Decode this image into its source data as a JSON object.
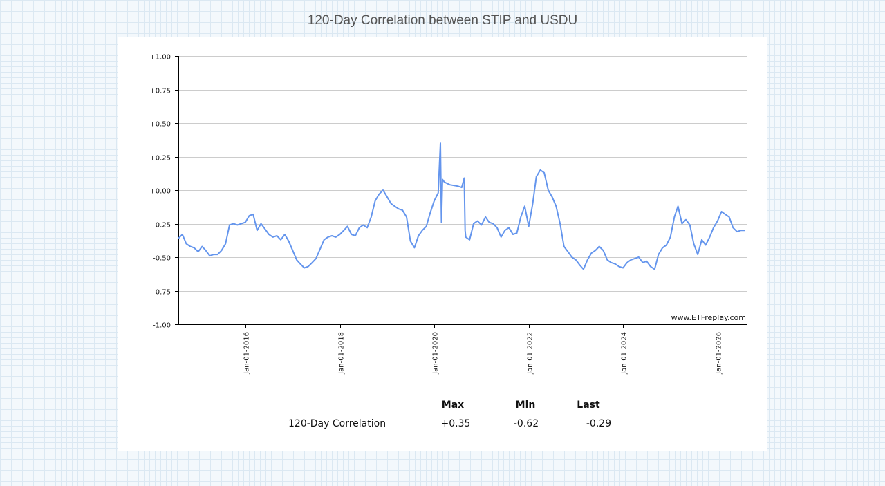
{
  "title": "120-Day Correlation between STIP and USDU",
  "watermark": "www.ETFreplay.com",
  "colors": {
    "line": "#6495ed",
    "grid": "#cccccc",
    "axis": "#000000"
  },
  "chart_data": {
    "type": "line",
    "title": "120-Day Correlation between STIP and USDU",
    "xlabel": "",
    "ylabel": "",
    "ylim": [
      -1.0,
      1.0
    ],
    "xlim": [
      "2014-08-01",
      "2026-08-20"
    ],
    "grid": true,
    "yticks": [
      {
        "value": 1.0,
        "label": "+1.00"
      },
      {
        "value": 0.75,
        "label": "+0.75"
      },
      {
        "value": 0.5,
        "label": "+0.50"
      },
      {
        "value": 0.25,
        "label": "+0.25"
      },
      {
        "value": 0.0,
        "label": "+0.00"
      },
      {
        "value": -0.25,
        "label": "-0.25"
      },
      {
        "value": -0.5,
        "label": "-0.50"
      },
      {
        "value": -0.75,
        "label": "-0.75"
      },
      {
        "value": -1.0,
        "label": "-1.00"
      }
    ],
    "xticks": [
      {
        "date": "2016-01-01",
        "label": "Jan-01-2016"
      },
      {
        "date": "2018-01-01",
        "label": "Jan-01-2018"
      },
      {
        "date": "2020-01-01",
        "label": "Jan-01-2020"
      },
      {
        "date": "2022-01-01",
        "label": "Jan-01-2022"
      },
      {
        "date": "2024-01-01",
        "label": "Jan-01-2024"
      },
      {
        "date": "2026-01-01",
        "label": "Jan-01-2026"
      }
    ],
    "series": [
      {
        "points": [
          [
            "2014-08-01",
            -0.36
          ],
          [
            "2014-09-01",
            -0.33
          ],
          [
            "2014-10-01",
            -0.4
          ],
          [
            "2014-11-01",
            -0.42
          ],
          [
            "2014-12-01",
            -0.43
          ],
          [
            "2015-01-01",
            -0.46
          ],
          [
            "2015-02-01",
            -0.42
          ],
          [
            "2015-03-01",
            -0.45
          ],
          [
            "2015-04-01",
            -0.49
          ],
          [
            "2015-05-01",
            -0.48
          ],
          [
            "2015-06-01",
            -0.48
          ],
          [
            "2015-07-01",
            -0.45
          ],
          [
            "2015-08-01",
            -0.4
          ],
          [
            "2015-09-01",
            -0.26
          ],
          [
            "2015-10-01",
            -0.25
          ],
          [
            "2015-11-01",
            -0.26
          ],
          [
            "2015-12-01",
            -0.25
          ],
          [
            "2016-01-01",
            -0.24
          ],
          [
            "2016-02-01",
            -0.19
          ],
          [
            "2016-03-01",
            -0.18
          ],
          [
            "2016-04-01",
            -0.3
          ],
          [
            "2016-05-01",
            -0.25
          ],
          [
            "2016-06-01",
            -0.29
          ],
          [
            "2016-07-01",
            -0.33
          ],
          [
            "2016-08-01",
            -0.35
          ],
          [
            "2016-09-01",
            -0.34
          ],
          [
            "2016-10-01",
            -0.37
          ],
          [
            "2016-11-01",
            -0.33
          ],
          [
            "2016-12-01",
            -0.38
          ],
          [
            "2017-01-01",
            -0.45
          ],
          [
            "2017-02-01",
            -0.52
          ],
          [
            "2017-03-01",
            -0.55
          ],
          [
            "2017-04-01",
            -0.58
          ],
          [
            "2017-05-01",
            -0.57
          ],
          [
            "2017-06-01",
            -0.54
          ],
          [
            "2017-07-01",
            -0.51
          ],
          [
            "2017-08-01",
            -0.44
          ],
          [
            "2017-09-01",
            -0.37
          ],
          [
            "2017-10-01",
            -0.35
          ],
          [
            "2017-11-01",
            -0.34
          ],
          [
            "2017-12-01",
            -0.35
          ],
          [
            "2018-01-01",
            -0.33
          ],
          [
            "2018-02-01",
            -0.3
          ],
          [
            "2018-03-01",
            -0.27
          ],
          [
            "2018-04-01",
            -0.33
          ],
          [
            "2018-05-01",
            -0.34
          ],
          [
            "2018-06-01",
            -0.28
          ],
          [
            "2018-07-01",
            -0.26
          ],
          [
            "2018-08-01",
            -0.28
          ],
          [
            "2018-09-01",
            -0.2
          ],
          [
            "2018-10-01",
            -0.08
          ],
          [
            "2018-11-01",
            -0.03
          ],
          [
            "2018-12-01",
            0.0
          ],
          [
            "2019-01-01",
            -0.05
          ],
          [
            "2019-02-01",
            -0.1
          ],
          [
            "2019-03-01",
            -0.12
          ],
          [
            "2019-04-01",
            -0.14
          ],
          [
            "2019-05-01",
            -0.15
          ],
          [
            "2019-06-01",
            -0.2
          ],
          [
            "2019-07-01",
            -0.38
          ],
          [
            "2019-08-01",
            -0.43
          ],
          [
            "2019-09-01",
            -0.34
          ],
          [
            "2019-10-01",
            -0.3
          ],
          [
            "2019-11-01",
            -0.27
          ],
          [
            "2019-12-01",
            -0.17
          ],
          [
            "2020-01-01",
            -0.08
          ],
          [
            "2020-02-01",
            -0.02
          ],
          [
            "2020-02-18",
            0.35
          ],
          [
            "2020-02-26",
            -0.24
          ],
          [
            "2020-03-05",
            0.08
          ],
          [
            "2020-03-20",
            0.06
          ],
          [
            "2020-05-01",
            0.04
          ],
          [
            "2020-07-01",
            0.03
          ],
          [
            "2020-08-01",
            0.02
          ],
          [
            "2020-08-20",
            0.09
          ],
          [
            "2020-08-27",
            -0.3
          ],
          [
            "2020-09-01",
            -0.35
          ],
          [
            "2020-10-01",
            -0.37
          ],
          [
            "2020-11-01",
            -0.25
          ],
          [
            "2020-12-01",
            -0.23
          ],
          [
            "2021-01-01",
            -0.26
          ],
          [
            "2021-02-01",
            -0.2
          ],
          [
            "2021-03-01",
            -0.24
          ],
          [
            "2021-04-01",
            -0.25
          ],
          [
            "2021-05-01",
            -0.28
          ],
          [
            "2021-06-01",
            -0.35
          ],
          [
            "2021-07-01",
            -0.3
          ],
          [
            "2021-08-01",
            -0.28
          ],
          [
            "2021-09-01",
            -0.33
          ],
          [
            "2021-10-01",
            -0.32
          ],
          [
            "2021-11-01",
            -0.2
          ],
          [
            "2021-12-01",
            -0.12
          ],
          [
            "2022-01-01",
            -0.27
          ],
          [
            "2022-02-01",
            -0.1
          ],
          [
            "2022-03-01",
            0.1
          ],
          [
            "2022-04-01",
            0.15
          ],
          [
            "2022-05-01",
            0.13
          ],
          [
            "2022-06-01",
            0.0
          ],
          [
            "2022-07-01",
            -0.05
          ],
          [
            "2022-08-01",
            -0.12
          ],
          [
            "2022-09-01",
            -0.25
          ],
          [
            "2022-10-01",
            -0.42
          ],
          [
            "2022-11-01",
            -0.46
          ],
          [
            "2022-12-01",
            -0.5
          ],
          [
            "2023-01-01",
            -0.52
          ],
          [
            "2023-02-01",
            -0.56
          ],
          [
            "2023-03-01",
            -0.59
          ],
          [
            "2023-04-01",
            -0.52
          ],
          [
            "2023-05-01",
            -0.47
          ],
          [
            "2023-06-01",
            -0.45
          ],
          [
            "2023-07-01",
            -0.42
          ],
          [
            "2023-08-01",
            -0.45
          ],
          [
            "2023-09-01",
            -0.52
          ],
          [
            "2023-10-01",
            -0.54
          ],
          [
            "2023-11-01",
            -0.55
          ],
          [
            "2023-12-01",
            -0.57
          ],
          [
            "2024-01-01",
            -0.58
          ],
          [
            "2024-02-01",
            -0.54
          ],
          [
            "2024-03-01",
            -0.52
          ],
          [
            "2024-04-01",
            -0.51
          ],
          [
            "2024-05-01",
            -0.5
          ],
          [
            "2024-06-01",
            -0.54
          ],
          [
            "2024-07-01",
            -0.53
          ],
          [
            "2024-08-01",
            -0.57
          ],
          [
            "2024-09-01",
            -0.59
          ],
          [
            "2024-10-01",
            -0.48
          ],
          [
            "2024-11-01",
            -0.43
          ],
          [
            "2024-12-01",
            -0.41
          ],
          [
            "2025-01-01",
            -0.35
          ],
          [
            "2025-02-01",
            -0.2
          ],
          [
            "2025-03-01",
            -0.12
          ],
          [
            "2025-04-01",
            -0.25
          ],
          [
            "2025-05-01",
            -0.22
          ],
          [
            "2025-06-01",
            -0.26
          ],
          [
            "2025-07-01",
            -0.4
          ],
          [
            "2025-08-01",
            -0.48
          ],
          [
            "2025-09-01",
            -0.37
          ],
          [
            "2025-10-01",
            -0.41
          ],
          [
            "2025-11-01",
            -0.35
          ],
          [
            "2025-12-01",
            -0.28
          ],
          [
            "2026-01-01",
            -0.23
          ],
          [
            "2026-02-01",
            -0.16
          ],
          [
            "2026-03-01",
            -0.18
          ],
          [
            "2026-04-01",
            -0.2
          ],
          [
            "2026-05-01",
            -0.28
          ],
          [
            "2026-06-01",
            -0.31
          ],
          [
            "2026-07-01",
            -0.3
          ],
          [
            "2026-08-01",
            -0.3
          ]
        ]
      }
    ]
  },
  "stats": {
    "headers": [
      "Max",
      "Min",
      "Last"
    ],
    "row_label": "120-Day Correlation",
    "values": [
      "+0.35",
      "-0.62",
      "-0.29"
    ]
  }
}
